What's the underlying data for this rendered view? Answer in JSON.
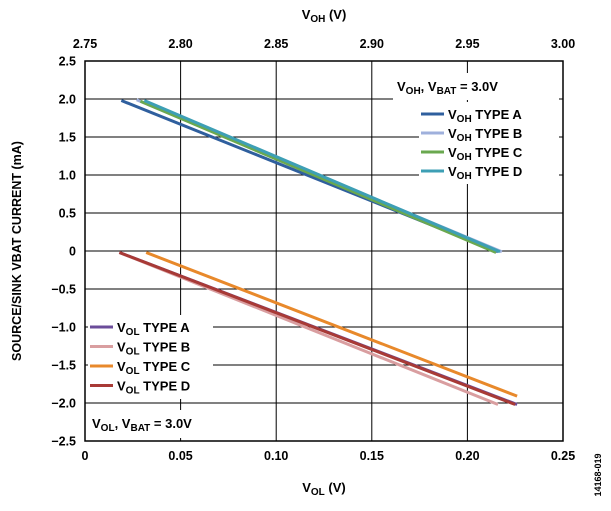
{
  "chart_data": {
    "type": "line",
    "title": "",
    "ylabel": "SOURCE/SINK VBAT CURRENT (mA)",
    "ylim": [
      -2.5,
      2.5
    ],
    "yticks": [
      {
        "v": 2.5,
        "label": "2.5"
      },
      {
        "v": 2.0,
        "label": "2.0"
      },
      {
        "v": 1.5,
        "label": "1.5"
      },
      {
        "v": 1.0,
        "label": "1.0"
      },
      {
        "v": 0.5,
        "label": "0.5"
      },
      {
        "v": 0,
        "label": "0"
      },
      {
        "v": -0.5,
        "label": "−0.5"
      },
      {
        "v": -1.0,
        "label": "−1.0"
      },
      {
        "v": -1.5,
        "label": "−1.5"
      },
      {
        "v": -2.0,
        "label": "−2.0"
      },
      {
        "v": -2.5,
        "label": "−2.5"
      }
    ],
    "x_bottom": {
      "label_main": "V",
      "label_sub": "OL",
      "label_unit": " (V)",
      "range": [
        0,
        0.25
      ],
      "ticks": [
        {
          "v": 0,
          "label": "0"
        },
        {
          "v": 0.05,
          "label": "0.05"
        },
        {
          "v": 0.1,
          "label": "0.10"
        },
        {
          "v": 0.15,
          "label": "0.15"
        },
        {
          "v": 0.2,
          "label": "0.20"
        },
        {
          "v": 0.25,
          "label": "0.25"
        }
      ]
    },
    "x_top": {
      "label_main": "V",
      "label_sub": "OH",
      "label_unit": " (V)",
      "range": [
        2.75,
        3.0
      ],
      "ticks": [
        {
          "v": 2.75,
          "label": "2.75"
        },
        {
          "v": 2.8,
          "label": "2.80"
        },
        {
          "v": 2.85,
          "label": "2.85"
        },
        {
          "v": 2.9,
          "label": "2.90"
        },
        {
          "v": 2.95,
          "label": "2.95"
        },
        {
          "v": 3.0,
          "label": "3.00"
        }
      ]
    },
    "grid": true,
    "series": [
      {
        "name": "TYPE A",
        "prefix": "V",
        "sub": "OH",
        "axis": "top",
        "color": "#2f5f9e",
        "x": [
          2.769,
          2.966
        ],
        "y": [
          1.98,
          -0.01
        ]
      },
      {
        "name": "TYPE B",
        "prefix": "V",
        "sub": "OH",
        "axis": "top",
        "color": "#9fb0dc",
        "x": [
          2.777,
          2.968
        ],
        "y": [
          1.99,
          -0.01
        ]
      },
      {
        "name": "TYPE C",
        "prefix": "V",
        "sub": "OH",
        "axis": "top",
        "color": "#6aa84f",
        "x": [
          2.779,
          2.965
        ],
        "y": [
          1.97,
          -0.02
        ]
      },
      {
        "name": "TYPE D",
        "prefix": "V",
        "sub": "OH",
        "axis": "top",
        "color": "#3d9fb5",
        "x": [
          2.781,
          2.967
        ],
        "y": [
          1.98,
          -0.01
        ]
      },
      {
        "name": "TYPE A",
        "prefix": "V",
        "sub": "OL",
        "axis": "bottom",
        "color": "#6b4c9a",
        "x": [
          0.018,
          0.226
        ],
        "y": [
          -0.02,
          -2.02
        ]
      },
      {
        "name": "TYPE B",
        "prefix": "V",
        "sub": "OL",
        "axis": "bottom",
        "color": "#d99ea0",
        "x": [
          0.018,
          0.216
        ],
        "y": [
          -0.02,
          -2.02
        ]
      },
      {
        "name": "TYPE C",
        "prefix": "V",
        "sub": "OL",
        "axis": "bottom",
        "color": "#e8892b",
        "x": [
          0.032,
          0.226
        ],
        "y": [
          -0.02,
          -1.91
        ]
      },
      {
        "name": "TYPE D",
        "prefix": "V",
        "sub": "OL",
        "axis": "bottom",
        "color": "#a83a36",
        "x": [
          0.018,
          0.225
        ],
        "y": [
          -0.02,
          -2.02
        ]
      }
    ],
    "annotations": {
      "oh_condition": {
        "v": "V",
        "sub1": "OH",
        "mid": ", V",
        "sub2": "BAT",
        "end": " = 3.0V"
      },
      "ol_condition": {
        "v": "V",
        "sub1": "OL",
        "mid": ", V",
        "sub2": "BAT",
        "end": " = 3.0V"
      },
      "figure_id": "14168-019"
    },
    "legend_placement": [
      "right",
      "lower-left"
    ]
  }
}
